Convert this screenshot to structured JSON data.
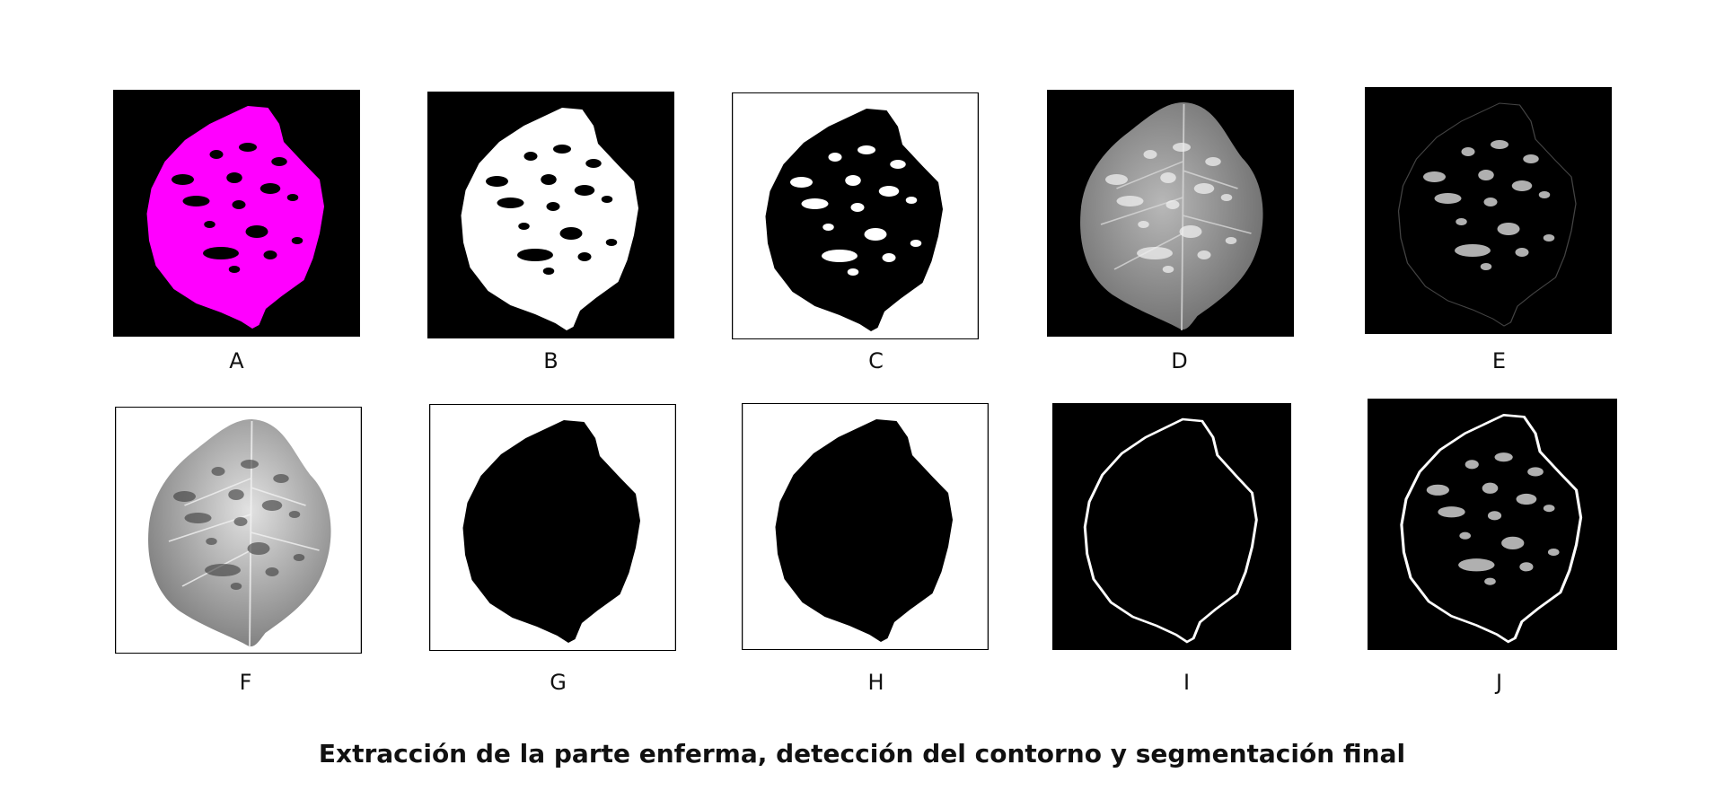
{
  "panels": [
    {
      "label": "A",
      "style": "magenta-mask"
    },
    {
      "label": "B",
      "style": "white-mask"
    },
    {
      "label": "C",
      "style": "inverted-mask"
    },
    {
      "label": "D",
      "style": "grayscale-leaf-on-black"
    },
    {
      "label": "E",
      "style": "extracted-spots"
    },
    {
      "label": "F",
      "style": "grayscale-leaf-on-white"
    },
    {
      "label": "G",
      "style": "black-silhouette"
    },
    {
      "label": "H",
      "style": "black-silhouette"
    },
    {
      "label": "I",
      "style": "contour"
    },
    {
      "label": "J",
      "style": "contour-with-spots"
    }
  ],
  "caption": "Extracción de la parte enferma, detección del contorno y segmentación final",
  "colors": {
    "magenta": "#ff00ff",
    "black": "#000000",
    "white": "#ffffff",
    "leaf_gray": "#9a9a9a",
    "spot_gray": "#b0b0b0"
  }
}
